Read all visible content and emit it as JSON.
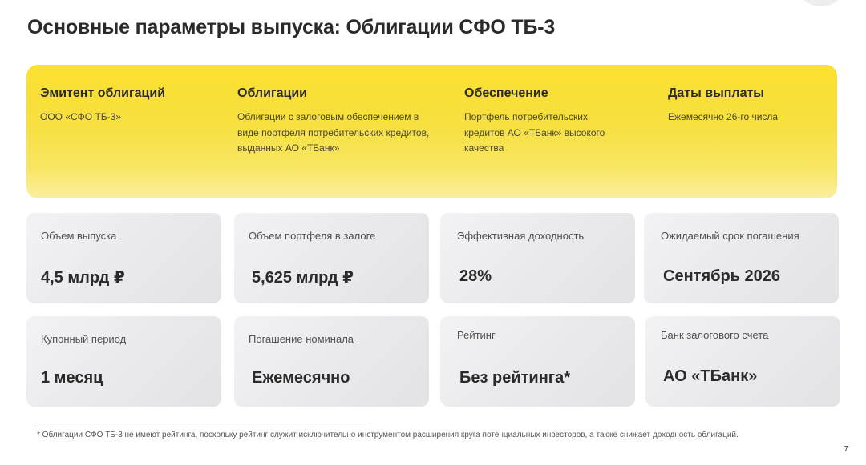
{
  "title": "Основные параметры выпуска: Облигации СФО ТБ-3",
  "highlight": {
    "items": [
      {
        "title": "Эмитент облигаций",
        "text": "ООО «СФО ТБ-3»"
      },
      {
        "title": "Облигации",
        "text": "Облигации с залоговым обеспечением в виде портфеля потребительских кредитов, выданных АО «ТБанк»"
      },
      {
        "title": "Обеспечение",
        "text": "Портфель потребительских кредитов АО «ТБанк» высокого качества"
      },
      {
        "title": "Даты выплаты",
        "text": "Ежемесячно 26-го числа"
      }
    ]
  },
  "cards": [
    {
      "label": "Объем выпуска",
      "value": "4,5 млрд ₽"
    },
    {
      "label": "Объем портфеля в залоге",
      "value": "5,625 млрд ₽"
    },
    {
      "label": "Эффективная доходность",
      "value": "28%"
    },
    {
      "label": "Ожидаемый срок погашения",
      "value": "Сентябрь 2026"
    },
    {
      "label": "Купонный период",
      "value": "1 месяц"
    },
    {
      "label": "Погашение номинала",
      "value": "Ежемесячно"
    },
    {
      "label": "Рейтинг",
      "value": "Без рейтинга*"
    },
    {
      "label": "Банк залогового счета",
      "value": "АО «ТБанк»"
    }
  ],
  "footnote": "* Облигации СФО ТБ-3 не имеют рейтинга, поскольку рейтинг служит исключительно инструментом расширения круга потенциальных инвесторов, а также снижает доходность облигаций.",
  "page_number": "7",
  "colors": {
    "accent_yellow": "#fbe12f",
    "card_grey": "#ececef"
  }
}
